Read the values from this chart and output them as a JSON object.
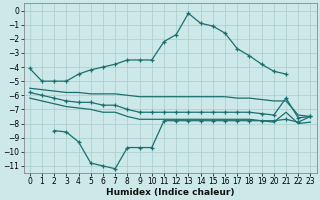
{
  "background_color": "#cce8e8",
  "grid_color": "#aacccc",
  "line_color": "#1a7070",
  "xlabel": "Humidex (Indice chaleur)",
  "ylim": [
    -11.5,
    0.5
  ],
  "xlim": [
    -0.5,
    23.5
  ],
  "yticks": [
    0,
    -1,
    -2,
    -3,
    -4,
    -5,
    -6,
    -7,
    -8,
    -9,
    -10,
    -11
  ],
  "xticks": [
    0,
    1,
    2,
    3,
    4,
    5,
    6,
    7,
    8,
    9,
    10,
    11,
    12,
    13,
    14,
    15,
    16,
    17,
    18,
    19,
    20,
    21,
    22,
    23
  ],
  "series": [
    {
      "x": [
        0,
        1,
        2,
        3,
        4,
        5,
        6,
        7,
        8,
        9,
        10,
        11,
        12,
        13,
        14,
        15,
        16,
        17,
        18,
        19,
        20,
        21
      ],
      "y": [
        -4.1,
        -5.0,
        -5.0,
        -5.0,
        -4.5,
        -4.2,
        -4.0,
        -3.8,
        -3.5,
        -3.5,
        -3.5,
        -2.2,
        -1.7,
        -0.2,
        -0.9,
        -1.1,
        -1.6,
        -2.7,
        -3.2,
        -3.8,
        -4.3,
        -4.5
      ],
      "has_markers": true
    },
    {
      "x": [
        0,
        1,
        2,
        3,
        4,
        5,
        6,
        7,
        8,
        9,
        10,
        11,
        12,
        13,
        14,
        15,
        16,
        17,
        18,
        19,
        20,
        21,
        22,
        23
      ],
      "y": [
        -5.5,
        -5.6,
        -5.7,
        -5.8,
        -5.8,
        -5.9,
        -5.9,
        -5.9,
        -6.0,
        -6.1,
        -6.1,
        -6.1,
        -6.1,
        -6.1,
        -6.1,
        -6.1,
        -6.1,
        -6.2,
        -6.2,
        -6.3,
        -6.4,
        -6.4,
        -7.4,
        -7.5
      ],
      "has_markers": false
    },
    {
      "x": [
        0,
        1,
        2,
        3,
        4,
        5,
        6,
        7,
        8,
        9,
        10,
        11,
        12,
        13,
        14,
        15,
        16,
        17,
        18,
        19,
        20,
        21,
        22,
        23
      ],
      "y": [
        -5.8,
        -6.0,
        -6.2,
        -6.4,
        -6.5,
        -6.5,
        -6.7,
        -6.7,
        -7.0,
        -7.2,
        -7.2,
        -7.2,
        -7.2,
        -7.2,
        -7.2,
        -7.2,
        -7.2,
        -7.2,
        -7.2,
        -7.3,
        -7.4,
        -6.2,
        -7.6,
        -7.5
      ],
      "has_markers": true
    },
    {
      "x": [
        0,
        1,
        2,
        3,
        4,
        5,
        6,
        7,
        8,
        9,
        10,
        11,
        12,
        13,
        14,
        15,
        16,
        17,
        18,
        19,
        20,
        21,
        22,
        23
      ],
      "y": [
        -6.2,
        -6.4,
        -6.6,
        -6.8,
        -6.9,
        -7.0,
        -7.2,
        -7.2,
        -7.5,
        -7.7,
        -7.7,
        -7.7,
        -7.7,
        -7.7,
        -7.7,
        -7.7,
        -7.7,
        -7.7,
        -7.7,
        -7.8,
        -7.9,
        -7.2,
        -8.0,
        -7.9
      ],
      "has_markers": false
    },
    {
      "x": [
        2,
        3,
        4,
        5,
        6,
        7,
        8,
        9,
        10,
        11,
        12,
        13,
        14,
        15,
        16,
        17,
        18,
        19,
        20,
        21,
        22,
        23
      ],
      "y": [
        -8.5,
        -8.6,
        -9.3,
        -10.8,
        -11.0,
        -11.2,
        -9.7,
        -9.7,
        -9.7,
        -7.8,
        -7.8,
        -7.8,
        -7.8,
        -7.8,
        -7.8,
        -7.8,
        -7.8,
        -7.8,
        -7.8,
        -7.7,
        -7.9,
        -7.5
      ],
      "has_markers": true
    }
  ]
}
